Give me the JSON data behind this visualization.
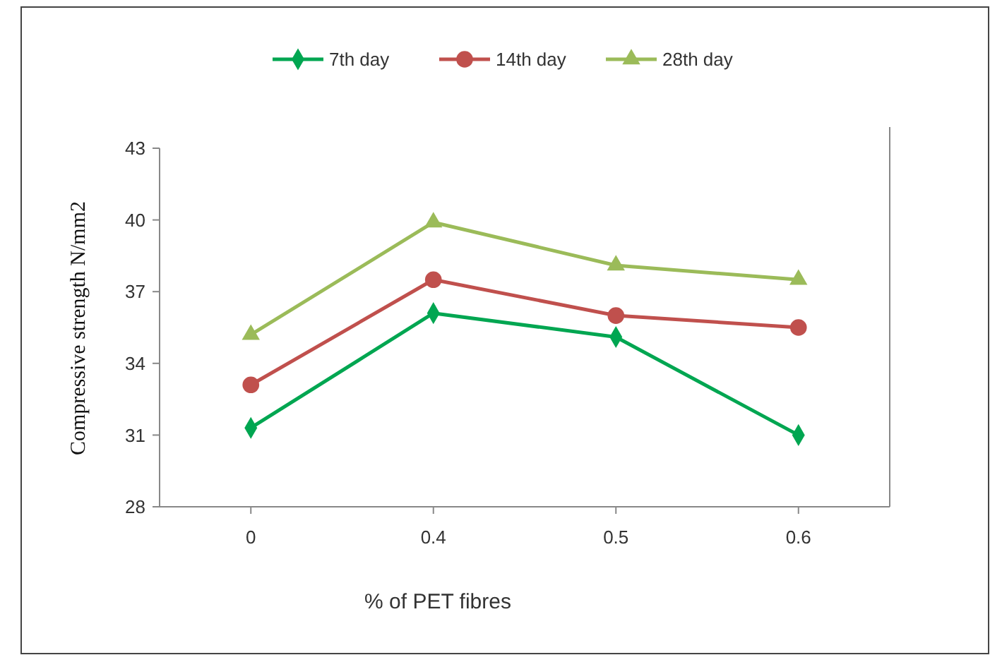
{
  "chart_data": {
    "type": "line",
    "xlabel": "% of PET fibres",
    "ylabel": "Compressive strength N/mm2",
    "categories": [
      "0",
      "0.4",
      "0.5",
      "0.6"
    ],
    "ylim": [
      28,
      43
    ],
    "yticks": [
      28,
      31,
      34,
      37,
      40,
      43
    ],
    "legend": "top",
    "grid": false,
    "series": [
      {
        "name": "7th day",
        "color": "#00a651",
        "marker": "diamond",
        "values": [
          31.3,
          36.1,
          35.1,
          31.0
        ]
      },
      {
        "name": "14th day",
        "color": "#c0504d",
        "marker": "circle",
        "values": [
          33.1,
          37.5,
          36.0,
          35.5
        ]
      },
      {
        "name": "28th day",
        "color": "#9bbb59",
        "marker": "triangle",
        "values": [
          35.2,
          39.9,
          38.1,
          37.5
        ]
      }
    ]
  }
}
